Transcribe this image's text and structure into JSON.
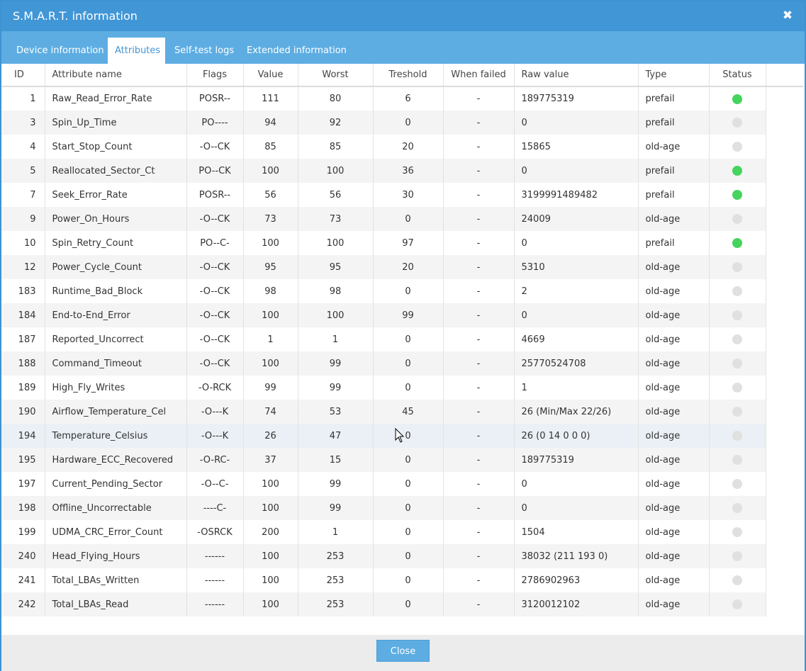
{
  "dialog": {
    "title": "S.M.A.R.T. information",
    "close_icon": "close-icon",
    "close_button_label": "Close"
  },
  "tabs": [
    {
      "label": "Device information",
      "active": false
    },
    {
      "label": "Attributes",
      "active": true
    },
    {
      "label": "Self-test logs",
      "active": false
    },
    {
      "label": "Extended information",
      "active": false
    }
  ],
  "table": {
    "columns": [
      "ID",
      "Attribute name",
      "Flags",
      "Value",
      "Worst",
      "Treshold",
      "When failed",
      "Raw value",
      "Type",
      "Status"
    ],
    "hover_row_index": 14,
    "rows": [
      {
        "id": "1",
        "name": "Raw_Read_Error_Rate",
        "flags": "POSR--",
        "value": "111",
        "worst": "80",
        "threshold": "6",
        "when_failed": "-",
        "raw": "189775319",
        "type": "prefail",
        "status": "ok"
      },
      {
        "id": "3",
        "name": "Spin_Up_Time",
        "flags": "PO----",
        "value": "94",
        "worst": "92",
        "threshold": "0",
        "when_failed": "-",
        "raw": "0",
        "type": "prefail",
        "status": "inactive"
      },
      {
        "id": "4",
        "name": "Start_Stop_Count",
        "flags": "-O--CK",
        "value": "85",
        "worst": "85",
        "threshold": "20",
        "when_failed": "-",
        "raw": "15865",
        "type": "old-age",
        "status": "inactive"
      },
      {
        "id": "5",
        "name": "Reallocated_Sector_Ct",
        "flags": "PO--CK",
        "value": "100",
        "worst": "100",
        "threshold": "36",
        "when_failed": "-",
        "raw": "0",
        "type": "prefail",
        "status": "ok"
      },
      {
        "id": "7",
        "name": "Seek_Error_Rate",
        "flags": "POSR--",
        "value": "56",
        "worst": "56",
        "threshold": "30",
        "when_failed": "-",
        "raw": "3199991489482",
        "type": "prefail",
        "status": "ok"
      },
      {
        "id": "9",
        "name": "Power_On_Hours",
        "flags": "-O--CK",
        "value": "73",
        "worst": "73",
        "threshold": "0",
        "when_failed": "-",
        "raw": "24009",
        "type": "old-age",
        "status": "inactive"
      },
      {
        "id": "10",
        "name": "Spin_Retry_Count",
        "flags": "PO--C-",
        "value": "100",
        "worst": "100",
        "threshold": "97",
        "when_failed": "-",
        "raw": "0",
        "type": "prefail",
        "status": "ok"
      },
      {
        "id": "12",
        "name": "Power_Cycle_Count",
        "flags": "-O--CK",
        "value": "95",
        "worst": "95",
        "threshold": "20",
        "when_failed": "-",
        "raw": "5310",
        "type": "old-age",
        "status": "inactive"
      },
      {
        "id": "183",
        "name": "Runtime_Bad_Block",
        "flags": "-O--CK",
        "value": "98",
        "worst": "98",
        "threshold": "0",
        "when_failed": "-",
        "raw": "2",
        "type": "old-age",
        "status": "inactive"
      },
      {
        "id": "184",
        "name": "End-to-End_Error",
        "flags": "-O--CK",
        "value": "100",
        "worst": "100",
        "threshold": "99",
        "when_failed": "-",
        "raw": "0",
        "type": "old-age",
        "status": "inactive"
      },
      {
        "id": "187",
        "name": "Reported_Uncorrect",
        "flags": "-O--CK",
        "value": "1",
        "worst": "1",
        "threshold": "0",
        "when_failed": "-",
        "raw": "4669",
        "type": "old-age",
        "status": "inactive"
      },
      {
        "id": "188",
        "name": "Command_Timeout",
        "flags": "-O--CK",
        "value": "100",
        "worst": "99",
        "threshold": "0",
        "when_failed": "-",
        "raw": "25770524708",
        "type": "old-age",
        "status": "inactive"
      },
      {
        "id": "189",
        "name": "High_Fly_Writes",
        "flags": "-O-RCK",
        "value": "99",
        "worst": "99",
        "threshold": "0",
        "when_failed": "-",
        "raw": "1",
        "type": "old-age",
        "status": "inactive"
      },
      {
        "id": "190",
        "name": "Airflow_Temperature_Cel",
        "flags": "-O---K",
        "value": "74",
        "worst": "53",
        "threshold": "45",
        "when_failed": "-",
        "raw": "26 (Min/Max 22/26)",
        "type": "old-age",
        "status": "inactive"
      },
      {
        "id": "194",
        "name": "Temperature_Celsius",
        "flags": "-O---K",
        "value": "26",
        "worst": "47",
        "threshold": "0",
        "when_failed": "-",
        "raw": "26 (0 14 0 0 0)",
        "type": "old-age",
        "status": "inactive"
      },
      {
        "id": "195",
        "name": "Hardware_ECC_Recovered",
        "flags": "-O-RC-",
        "value": "37",
        "worst": "15",
        "threshold": "0",
        "when_failed": "-",
        "raw": "189775319",
        "type": "old-age",
        "status": "inactive"
      },
      {
        "id": "197",
        "name": "Current_Pending_Sector",
        "flags": "-O--C-",
        "value": "100",
        "worst": "99",
        "threshold": "0",
        "when_failed": "-",
        "raw": "0",
        "type": "old-age",
        "status": "inactive"
      },
      {
        "id": "198",
        "name": "Offline_Uncorrectable",
        "flags": "----C-",
        "value": "100",
        "worst": "99",
        "threshold": "0",
        "when_failed": "-",
        "raw": "0",
        "type": "old-age",
        "status": "inactive"
      },
      {
        "id": "199",
        "name": "UDMA_CRC_Error_Count",
        "flags": "-OSRCK",
        "value": "200",
        "worst": "1",
        "threshold": "0",
        "when_failed": "-",
        "raw": "1504",
        "type": "old-age",
        "status": "inactive"
      },
      {
        "id": "240",
        "name": "Head_Flying_Hours",
        "flags": "------",
        "value": "100",
        "worst": "253",
        "threshold": "0",
        "when_failed": "-",
        "raw": "38032 (211 193 0)",
        "type": "old-age",
        "status": "inactive"
      },
      {
        "id": "241",
        "name": "Total_LBAs_Written",
        "flags": "------",
        "value": "100",
        "worst": "253",
        "threshold": "0",
        "when_failed": "-",
        "raw": "2786902963",
        "type": "old-age",
        "status": "inactive"
      },
      {
        "id": "242",
        "name": "Total_LBAs_Read",
        "flags": "------",
        "value": "100",
        "worst": "253",
        "threshold": "0",
        "when_failed": "-",
        "raw": "3120012102",
        "type": "old-age",
        "status": "inactive"
      }
    ]
  },
  "colors": {
    "titlebar": "#4196d6",
    "tabbar": "#5dade2",
    "status_ok": "#45d45e",
    "status_inactive": "#e0e0e0"
  }
}
